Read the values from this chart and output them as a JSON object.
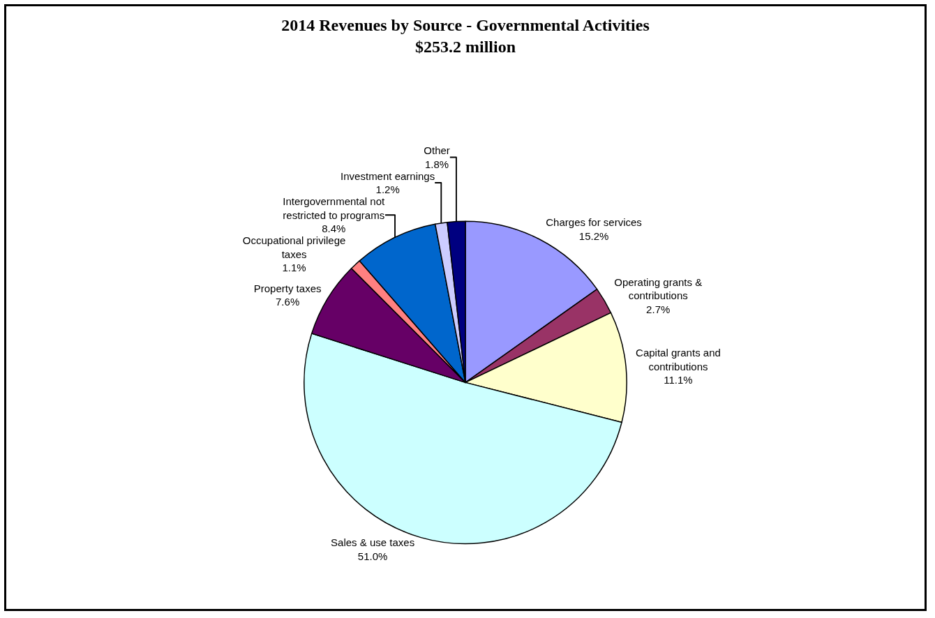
{
  "chart_data": {
    "type": "pie",
    "title": "2014 Revenues by Source - Governmental Activities\n$253.2 million",
    "categories": [
      "Charges for services",
      "Operating grants & contributions",
      "Capital grants and contributions",
      "Sales & use taxes",
      "Property taxes",
      "Occupational privilege taxes",
      "Intergovernmental not restricted to programs",
      "Investment earnings",
      "Other"
    ],
    "values": [
      15.2,
      2.7,
      11.1,
      51.0,
      7.6,
      1.1,
      8.4,
      1.2,
      1.8
    ],
    "value_labels": [
      "15.2%",
      "2.7%",
      "11.1%",
      "51.0%",
      "7.6%",
      "1.1%",
      "8.4%",
      "1.2%",
      "1.8%"
    ],
    "colors": [
      "#9999ff",
      "#993366",
      "#ffffcc",
      "#ccffff",
      "#660066",
      "#ff8080",
      "#0066cc",
      "#ccccff",
      "#000080"
    ],
    "legend": false
  }
}
